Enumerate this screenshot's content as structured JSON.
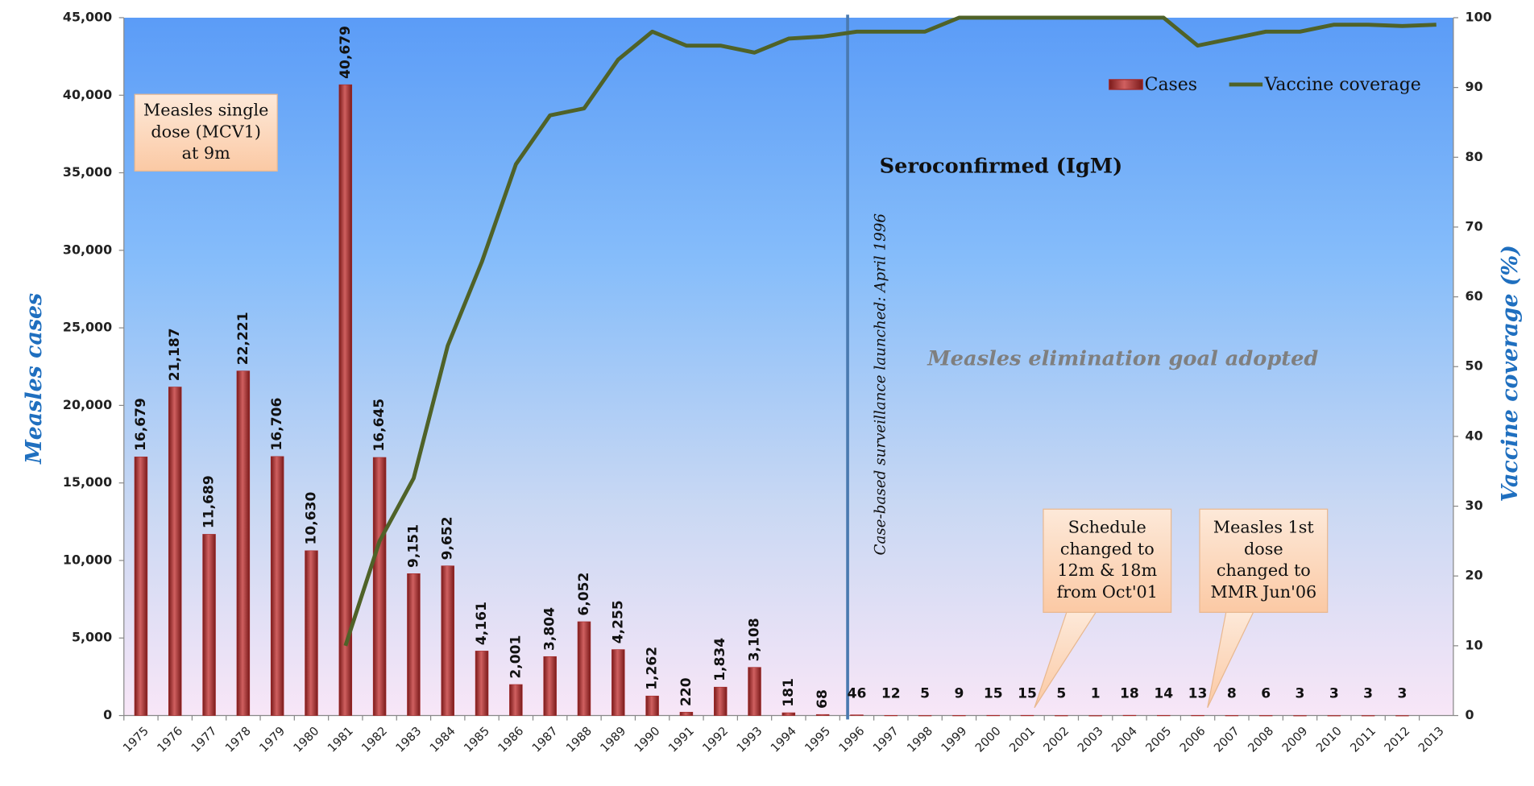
{
  "chart_data": {
    "type": "bar",
    "y_label": "Measles cases",
    "y2_label": "Vaccine coverage (%)",
    "categories": [
      "1975",
      "1976",
      "1977",
      "1978",
      "1979",
      "1980",
      "1981",
      "1982",
      "1983",
      "1984",
      "1985",
      "1986",
      "1987",
      "1988",
      "1989",
      "1990",
      "1991",
      "1992",
      "1993",
      "1994",
      "1995",
      "1996",
      "1997",
      "1998",
      "1999",
      "2000",
      "2001",
      "2002",
      "2003",
      "2004",
      "2005",
      "2006",
      "2007",
      "2008",
      "2009",
      "2010",
      "2011",
      "2012",
      "2013"
    ],
    "series": [
      {
        "name": "Cases",
        "type": "bar",
        "color": "#a52a2a",
        "values": [
          16679,
          21187,
          11689,
          22221,
          16706,
          10630,
          40679,
          16645,
          9151,
          9652,
          4161,
          2001,
          3804,
          6052,
          4255,
          1262,
          220,
          1834,
          3108,
          181,
          68,
          46,
          12,
          5,
          9,
          15,
          15,
          5,
          1,
          18,
          14,
          13,
          8,
          6,
          3,
          3,
          3,
          3,
          null
        ],
        "value_labels": [
          "16,679",
          "21,187",
          "11,689",
          "22,221",
          "16,706",
          "10,630",
          "40,679",
          "16,645",
          "9,151",
          "9,652",
          "4,161",
          "2,001",
          "3,804",
          "6,052",
          "4,255",
          "1,262",
          "220",
          "1,834",
          "3,108",
          "181",
          "68",
          "46",
          "12",
          "5",
          "9",
          "15",
          "15",
          "5",
          "1",
          "18",
          "14",
          "13",
          "8",
          "6",
          "3",
          "3",
          "3",
          "3",
          null
        ]
      },
      {
        "name": "Vaccine coverage",
        "type": "line",
        "axis": "y2",
        "color": "#4f6228",
        "values": [
          null,
          null,
          null,
          null,
          null,
          null,
          10,
          25,
          34,
          53,
          65,
          79,
          86,
          87,
          94,
          98,
          96,
          96,
          95,
          97,
          97.3,
          98,
          98,
          98,
          100,
          100,
          100,
          100,
          100,
          100,
          100,
          96,
          97,
          98,
          98,
          99,
          99,
          98.8,
          99
        ]
      }
    ],
    "ylim": [
      0,
      45000
    ],
    "yticks": [
      {
        "value": 0,
        "label": "0"
      },
      {
        "value": 5000,
        "label": "5,000"
      },
      {
        "value": 10000,
        "label": "10,000"
      },
      {
        "value": 15000,
        "label": "15,000"
      },
      {
        "value": 20000,
        "label": "20,000"
      },
      {
        "value": 25000,
        "label": "25,000"
      },
      {
        "value": 30000,
        "label": "30,000"
      },
      {
        "value": 35000,
        "label": "35,000"
      },
      {
        "value": 40000,
        "label": "40,000"
      },
      {
        "value": 45000,
        "label": "45,000"
      }
    ],
    "y2lim": [
      0,
      100
    ],
    "y2ticks": [
      0,
      10,
      20,
      30,
      40,
      50,
      60,
      70,
      80,
      90,
      100
    ],
    "legend": "top-right",
    "annotations": {
      "mcv1": [
        "Measles single",
        "dose (MCV1)",
        "at 9m"
      ],
      "seroconfirmed": "Seroconfirmed (IgM)",
      "surveillance": "Case-based surveillance launched: April 1996",
      "elimination": "Measles elimination goal adopted",
      "schedule": [
        "Schedule",
        "changed to",
        "12m & 18m",
        "from Oct'01"
      ],
      "mmr": [
        "Measles 1st",
        "dose",
        "changed to",
        "MMR Jun'06"
      ]
    }
  }
}
